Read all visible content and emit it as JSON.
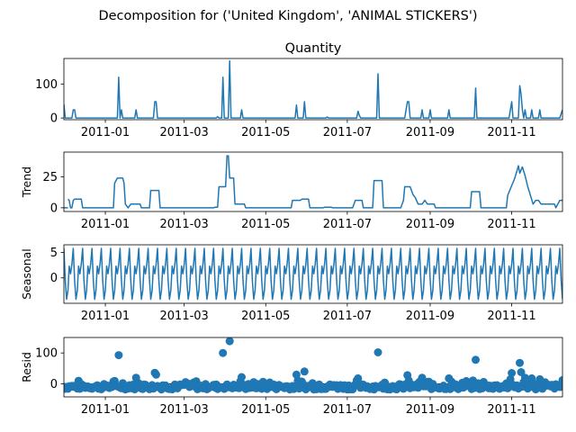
{
  "figure_title": "Decomposition for ('United Kingdom', 'ANIMAL STICKERS')",
  "colors": {
    "series": "#1f77b4",
    "axis": "#000000",
    "background": "#ffffff"
  },
  "chart_data": [
    {
      "type": "line",
      "title": "Quantity",
      "ylabel": "",
      "x_range": [
        "2010-12-01",
        "2011-12-09"
      ],
      "xticks": [
        "2011-01",
        "2011-03",
        "2011-05",
        "2011-07",
        "2011-09",
        "2011-11"
      ],
      "yticks": [
        0,
        100
      ],
      "ylim": [
        -5,
        175
      ],
      "baseline": 0,
      "points": [
        [
          "2010-12-01",
          40
        ],
        [
          "2010-12-02",
          0
        ],
        [
          "2010-12-07",
          0
        ],
        [
          "2010-12-08",
          24
        ],
        [
          "2010-12-09",
          24
        ],
        [
          "2010-12-10",
          0
        ],
        [
          "2011-01-10",
          0
        ],
        [
          "2011-01-11",
          120
        ],
        [
          "2011-01-12",
          0
        ],
        [
          "2011-01-13",
          24
        ],
        [
          "2011-01-14",
          0
        ],
        [
          "2011-01-23",
          0
        ],
        [
          "2011-01-24",
          24
        ],
        [
          "2011-01-25",
          0
        ],
        [
          "2011-02-06",
          0
        ],
        [
          "2011-02-07",
          48
        ],
        [
          "2011-02-08",
          48
        ],
        [
          "2011-02-09",
          0
        ],
        [
          "2011-03-25",
          0
        ],
        [
          "2011-03-26",
          4
        ],
        [
          "2011-03-27",
          0
        ],
        [
          "2011-03-29",
          0
        ],
        [
          "2011-03-30",
          120
        ],
        [
          "2011-03-31",
          0
        ],
        [
          "2011-04-03",
          0
        ],
        [
          "2011-04-04",
          168
        ],
        [
          "2011-04-05",
          0
        ],
        [
          "2011-04-12",
          0
        ],
        [
          "2011-04-13",
          24
        ],
        [
          "2011-04-14",
          0
        ],
        [
          "2011-05-23",
          0
        ],
        [
          "2011-05-24",
          38
        ],
        [
          "2011-05-25",
          0
        ],
        [
          "2011-05-29",
          0
        ],
        [
          "2011-05-30",
          48
        ],
        [
          "2011-05-31",
          0
        ],
        [
          "2011-06-15",
          0
        ],
        [
          "2011-06-16",
          3
        ],
        [
          "2011-06-17",
          0
        ],
        [
          "2011-07-08",
          0
        ],
        [
          "2011-07-09",
          20
        ],
        [
          "2011-07-10",
          8
        ],
        [
          "2011-07-11",
          0
        ],
        [
          "2011-07-23",
          0
        ],
        [
          "2011-07-24",
          130
        ],
        [
          "2011-07-25",
          0
        ],
        [
          "2011-08-13",
          0
        ],
        [
          "2011-08-14",
          24
        ],
        [
          "2011-08-15",
          48
        ],
        [
          "2011-08-16",
          48
        ],
        [
          "2011-08-17",
          0
        ],
        [
          "2011-08-25",
          0
        ],
        [
          "2011-08-26",
          24
        ],
        [
          "2011-08-27",
          0
        ],
        [
          "2011-08-31",
          0
        ],
        [
          "2011-09-01",
          24
        ],
        [
          "2011-09-02",
          0
        ],
        [
          "2011-09-14",
          0
        ],
        [
          "2011-09-15",
          24
        ],
        [
          "2011-09-16",
          0
        ],
        [
          "2011-10-04",
          0
        ],
        [
          "2011-10-05",
          88
        ],
        [
          "2011-10-06",
          0
        ],
        [
          "2011-10-30",
          0
        ],
        [
          "2011-10-31",
          24
        ],
        [
          "2011-11-01",
          48
        ],
        [
          "2011-11-02",
          0
        ],
        [
          "2011-11-06",
          0
        ],
        [
          "2011-11-07",
          95
        ],
        [
          "2011-11-08",
          70
        ],
        [
          "2011-11-09",
          24
        ],
        [
          "2011-11-10",
          0
        ],
        [
          "2011-11-11",
          24
        ],
        [
          "2011-11-12",
          0
        ],
        [
          "2011-11-15",
          0
        ],
        [
          "2011-11-16",
          24
        ],
        [
          "2011-11-17",
          0
        ],
        [
          "2011-11-21",
          0
        ],
        [
          "2011-11-22",
          24
        ],
        [
          "2011-11-23",
          0
        ],
        [
          "2011-12-07",
          0
        ],
        [
          "2011-12-09",
          24
        ]
      ]
    },
    {
      "type": "line",
      "title": "",
      "ylabel": "Trend",
      "x_range": [
        "2010-12-01",
        "2011-12-09"
      ],
      "xticks": [
        "2011-01",
        "2011-03",
        "2011-05",
        "2011-07",
        "2011-09",
        "2011-11"
      ],
      "yticks": [
        0,
        25
      ],
      "ylim": [
        -3,
        45
      ],
      "baseline": 0,
      "points": [
        [
          "2010-12-04",
          7
        ],
        [
          "2010-12-05",
          6
        ],
        [
          "2010-12-06",
          0
        ],
        [
          "2010-12-07",
          0
        ],
        [
          "2010-12-08",
          6
        ],
        [
          "2010-12-09",
          7
        ],
        [
          "2010-12-14",
          7
        ],
        [
          "2010-12-15",
          0
        ],
        [
          "2011-01-07",
          0
        ],
        [
          "2011-01-08",
          20
        ],
        [
          "2011-01-09",
          22
        ],
        [
          "2011-01-10",
          24
        ],
        [
          "2011-01-14",
          24
        ],
        [
          "2011-01-15",
          20
        ],
        [
          "2011-01-16",
          3
        ],
        [
          "2011-01-18",
          0
        ],
        [
          "2011-01-20",
          3
        ],
        [
          "2011-01-27",
          3
        ],
        [
          "2011-01-28",
          0
        ],
        [
          "2011-02-03",
          0
        ],
        [
          "2011-02-04",
          14
        ],
        [
          "2011-02-10",
          14
        ],
        [
          "2011-02-11",
          0
        ],
        [
          "2011-03-23",
          0
        ],
        [
          "2011-03-24",
          0.5
        ],
        [
          "2011-03-26",
          0.5
        ],
        [
          "2011-03-27",
          17
        ],
        [
          "2011-04-01",
          17
        ],
        [
          "2011-04-02",
          42
        ],
        [
          "2011-04-03",
          42
        ],
        [
          "2011-04-04",
          24
        ],
        [
          "2011-04-07",
          24
        ],
        [
          "2011-04-08",
          3
        ],
        [
          "2011-04-15",
          3
        ],
        [
          "2011-04-16",
          0
        ],
        [
          "2011-05-20",
          0
        ],
        [
          "2011-05-21",
          6
        ],
        [
          "2011-05-27",
          6
        ],
        [
          "2011-05-28",
          7
        ],
        [
          "2011-06-02",
          7
        ],
        [
          "2011-06-03",
          0
        ],
        [
          "2011-06-13",
          0
        ],
        [
          "2011-06-14",
          0.5
        ],
        [
          "2011-06-19",
          0.5
        ],
        [
          "2011-06-20",
          0
        ],
        [
          "2011-07-05",
          0
        ],
        [
          "2011-07-06",
          3
        ],
        [
          "2011-07-07",
          6
        ],
        [
          "2011-07-12",
          6
        ],
        [
          "2011-07-13",
          0
        ],
        [
          "2011-07-20",
          0
        ],
        [
          "2011-07-21",
          22
        ],
        [
          "2011-07-27",
          22
        ],
        [
          "2011-07-28",
          0
        ],
        [
          "2011-08-10",
          0
        ],
        [
          "2011-08-12",
          6
        ],
        [
          "2011-08-13",
          17
        ],
        [
          "2011-08-17",
          17
        ],
        [
          "2011-08-19",
          11
        ],
        [
          "2011-08-21",
          8
        ],
        [
          "2011-08-23",
          3
        ],
        [
          "2011-08-26",
          3
        ],
        [
          "2011-08-28",
          6
        ],
        [
          "2011-08-30",
          3
        ],
        [
          "2011-09-04",
          3
        ],
        [
          "2011-09-05",
          0
        ],
        [
          "2011-10-01",
          0
        ],
        [
          "2011-10-02",
          13
        ],
        [
          "2011-10-08",
          13
        ],
        [
          "2011-10-09",
          0
        ],
        [
          "2011-10-28",
          0
        ],
        [
          "2011-10-29",
          10
        ],
        [
          "2011-11-01",
          18
        ],
        [
          "2011-11-03",
          23
        ],
        [
          "2011-11-05",
          30
        ],
        [
          "2011-11-06",
          34
        ],
        [
          "2011-11-07",
          28
        ],
        [
          "2011-11-09",
          33
        ],
        [
          "2011-11-11",
          26
        ],
        [
          "2011-11-13",
          17
        ],
        [
          "2011-11-15",
          10
        ],
        [
          "2011-11-17",
          3
        ],
        [
          "2011-11-19",
          6
        ],
        [
          "2011-11-21",
          6
        ],
        [
          "2011-11-23",
          3
        ],
        [
          "2011-12-03",
          3
        ],
        [
          "2011-12-04",
          0
        ],
        [
          "2011-12-07",
          6
        ]
      ]
    },
    {
      "type": "line",
      "title": "",
      "ylabel": "Seasonal",
      "x_range": [
        "2010-12-01",
        "2011-12-09"
      ],
      "xticks": [
        "2011-01",
        "2011-03",
        "2011-05",
        "2011-07",
        "2011-09",
        "2011-11"
      ],
      "yticks": [
        0,
        5
      ],
      "ylim": [
        -5,
        6.5
      ],
      "period_days": 7,
      "cycle_values": [
        5.8,
        -0.5,
        -4.2,
        -2.5,
        2.3,
        0.8,
        2.7
      ]
    },
    {
      "type": "scatter",
      "title": "",
      "ylabel": "Resid",
      "x_range": [
        "2010-12-01",
        "2011-12-09"
      ],
      "xticks": [
        "2011-01",
        "2011-03",
        "2011-05",
        "2011-07",
        "2011-09",
        "2011-11"
      ],
      "yticks": [
        0,
        100
      ],
      "ylim": [
        -42,
        150
      ],
      "outliers": [
        [
          "2011-01-11",
          93
        ],
        [
          "2011-01-24",
          20
        ],
        [
          "2011-02-07",
          36
        ],
        [
          "2011-02-08",
          30
        ],
        [
          "2011-03-30",
          100
        ],
        [
          "2011-04-04",
          138
        ],
        [
          "2011-04-13",
          22
        ],
        [
          "2011-05-24",
          30
        ],
        [
          "2011-05-30",
          40
        ],
        [
          "2011-07-09",
          18
        ],
        [
          "2011-07-24",
          102
        ],
        [
          "2011-08-15",
          28
        ],
        [
          "2011-08-26",
          20
        ],
        [
          "2011-09-15",
          18
        ],
        [
          "2011-10-05",
          78
        ],
        [
          "2011-10-31",
          15
        ],
        [
          "2011-11-01",
          35
        ],
        [
          "2011-11-07",
          68
        ],
        [
          "2011-11-08",
          38
        ],
        [
          "2011-11-11",
          20
        ],
        [
          "2011-11-16",
          18
        ],
        [
          "2011-11-22",
          15
        ],
        [
          "2011-12-09",
          12
        ]
      ],
      "noise_band": [
        -18,
        12
      ]
    }
  ]
}
